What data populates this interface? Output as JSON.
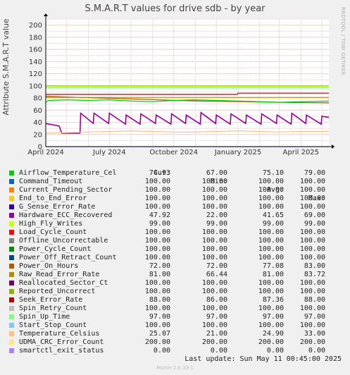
{
  "page": {
    "title": "S.M.A.R.T values for drive sdb - by year",
    "side_text": "RRDTOOL / TOBI OETIKER",
    "last_update_label": "Last update:",
    "last_update_value": "Sun May 11 00:45:00 2025",
    "footer": "Munin 2.0.33-1"
  },
  "legend_header": {
    "cur": "Cur:",
    "min": "Min:",
    "avg": "Avg:",
    "max": "Max:"
  },
  "legend": [
    {
      "name": "Airflow_Temperature_Cel",
      "color": "#00cc00",
      "cur": "74.93",
      "min": "67.00",
      "avg": "75.10",
      "max": "79.00"
    },
    {
      "name": "Command_Timeout",
      "color": "#0066b3",
      "cur": "100.00",
      "min": "100.00",
      "avg": "100.00",
      "max": "100.00"
    },
    {
      "name": "Current_Pending_Sector",
      "color": "#ff8000",
      "cur": "100.00",
      "min": "100.00",
      "avg": "100.00",
      "max": "100.00"
    },
    {
      "name": "End_to_End_Error",
      "color": "#ffcc00",
      "cur": "100.00",
      "min": "100.00",
      "avg": "100.00",
      "max": "100.00"
    },
    {
      "name": "G_Sense_Error_Rate",
      "color": "#330099",
      "cur": "100.00",
      "min": "100.00",
      "avg": "100.00",
      "max": "100.00"
    },
    {
      "name": "Hardware_ECC_Recovered",
      "color": "#990099",
      "cur": "47.92",
      "min": "22.00",
      "avg": "41.65",
      "max": "69.00"
    },
    {
      "name": "High_Fly_Writes",
      "color": "#ccff00",
      "cur": "99.00",
      "min": "99.00",
      "avg": "99.00",
      "max": "99.00"
    },
    {
      "name": "Load_Cycle_Count",
      "color": "#ff0000",
      "cur": "100.00",
      "min": "100.00",
      "avg": "100.00",
      "max": "100.00"
    },
    {
      "name": "Offline_Uncorrectable",
      "color": "#808080",
      "cur": "100.00",
      "min": "100.00",
      "avg": "100.00",
      "max": "100.00"
    },
    {
      "name": "Power_Cycle_Count",
      "color": "#008f00",
      "cur": "100.00",
      "min": "100.00",
      "avg": "100.00",
      "max": "100.00"
    },
    {
      "name": "Power_Off_Retract_Count",
      "color": "#00487d",
      "cur": "100.00",
      "min": "100.00",
      "avg": "100.00",
      "max": "100.00"
    },
    {
      "name": "Power_On_Hours",
      "color": "#b35a00",
      "cur": "72.00",
      "min": "72.00",
      "avg": "77.08",
      "max": "83.00"
    },
    {
      "name": "Raw_Read_Error_Rate",
      "color": "#b38f00",
      "cur": "81.00",
      "min": "66.44",
      "avg": "81.00",
      "max": "83.72"
    },
    {
      "name": "Reallocated_Sector_Ct",
      "color": "#6b006b",
      "cur": "100.00",
      "min": "100.00",
      "avg": "100.00",
      "max": "100.00"
    },
    {
      "name": "Reported_Uncorrect",
      "color": "#8fb300",
      "cur": "100.00",
      "min": "100.00",
      "avg": "100.00",
      "max": "100.00"
    },
    {
      "name": "Seek_Error_Rate",
      "color": "#b30000",
      "cur": "88.00",
      "min": "86.00",
      "avg": "87.36",
      "max": "88.00"
    },
    {
      "name": "Spin_Retry_Count",
      "color": "#bebebe",
      "cur": "100.00",
      "min": "100.00",
      "avg": "100.00",
      "max": "100.00"
    },
    {
      "name": "Spin_Up_Time",
      "color": "#80ff80",
      "cur": "97.00",
      "min": "97.00",
      "avg": "97.00",
      "max": "97.00"
    },
    {
      "name": "Start_Stop_Count",
      "color": "#80c9ff",
      "cur": "100.00",
      "min": "100.00",
      "avg": "100.00",
      "max": "100.00"
    },
    {
      "name": "Temperature_Celsius",
      "color": "#ffc080",
      "cur": "25.07",
      "min": "21.00",
      "avg": "24.90",
      "max": "33.00"
    },
    {
      "name": "UDMA_CRC_Error_Count",
      "color": "#ffe680",
      "cur": "200.00",
      "min": "200.00",
      "avg": "200.00",
      "max": "200.00"
    },
    {
      "name": "smartctl_exit_status",
      "color": "#aa80ff",
      "cur": "0.00",
      "min": "0.00",
      "avg": "0.00",
      "max": "0.00"
    }
  ],
  "chart_data": {
    "type": "line",
    "title": "S.M.A.R.T values for drive sdb - by year",
    "ylabel": "Attribute S.M.A.R.T value",
    "ylim": [
      0,
      210
    ],
    "yticks": [
      0,
      20,
      40,
      60,
      80,
      100,
      120,
      140,
      160,
      180,
      200
    ],
    "xlim": [
      "2024-04-01",
      "2025-05-11"
    ],
    "xticks": [
      {
        "date": "2024-04-01",
        "label": "April 2024"
      },
      {
        "date": "2024-07-01",
        "label": "July 2024"
      },
      {
        "date": "2024-10-01",
        "label": "October 2024"
      },
      {
        "date": "2025-01-01",
        "label": "January 2025"
      },
      {
        "date": "2025-04-01",
        "label": "April 2025"
      }
    ],
    "grid": true,
    "series": [
      {
        "name": "UDMA_CRC_Error_Count",
        "color": "#ffe680",
        "points": [
          [
            "2024-04-01",
            200
          ],
          [
            "2025-05-11",
            200
          ]
        ]
      },
      {
        "name": "Command_Timeout",
        "color": "#0066b3",
        "points": [
          [
            "2024-04-01",
            100
          ],
          [
            "2025-05-11",
            100
          ]
        ]
      },
      {
        "name": "Start_Stop_Count",
        "color": "#80c9ff",
        "points": [
          [
            "2024-04-01",
            100
          ],
          [
            "2025-05-11",
            100
          ]
        ]
      },
      {
        "name": "High_Fly_Writes",
        "color": "#ccff00",
        "points": [
          [
            "2024-04-01",
            99
          ],
          [
            "2025-05-11",
            99
          ]
        ]
      },
      {
        "name": "Spin_Up_Time",
        "color": "#80ff80",
        "points": [
          [
            "2024-04-01",
            97
          ],
          [
            "2025-05-11",
            97
          ]
        ]
      },
      {
        "name": "Seek_Error_Rate",
        "color": "#b30000",
        "points": [
          [
            "2024-04-01",
            86
          ],
          [
            "2024-12-31",
            86
          ],
          [
            "2025-01-01",
            88
          ],
          [
            "2025-05-11",
            88
          ]
        ]
      },
      {
        "name": "Power_On_Hours",
        "color": "#b35a00",
        "points": [
          [
            "2024-04-01",
            83
          ],
          [
            "2024-05-20",
            81
          ],
          [
            "2024-07-15",
            79
          ],
          [
            "2024-09-10",
            77
          ],
          [
            "2024-11-05",
            75
          ],
          [
            "2025-01-05",
            74
          ],
          [
            "2025-03-01",
            73
          ],
          [
            "2025-05-11",
            72
          ]
        ]
      },
      {
        "name": "Raw_Read_Error_Rate",
        "color": "#b38f00",
        "points": [
          [
            "2024-04-01",
            81
          ],
          [
            "2025-05-11",
            81
          ]
        ]
      },
      {
        "name": "Airflow_Temperature_Cel",
        "color": "#00cc00",
        "points": [
          [
            "2024-04-01",
            73
          ],
          [
            "2024-04-05",
            76
          ],
          [
            "2024-05-01",
            77
          ],
          [
            "2024-06-01",
            76
          ],
          [
            "2024-07-01",
            77
          ],
          [
            "2024-08-01",
            75
          ],
          [
            "2024-09-01",
            74
          ],
          [
            "2024-10-01",
            76
          ],
          [
            "2024-11-01",
            77
          ],
          [
            "2024-12-01",
            76
          ],
          [
            "2025-01-01",
            75
          ],
          [
            "2025-02-01",
            74
          ],
          [
            "2025-03-01",
            73
          ],
          [
            "2025-04-01",
            74
          ],
          [
            "2025-05-11",
            75
          ]
        ]
      },
      {
        "name": "Hardware_ECC_Recovered",
        "color": "#990099",
        "points": [
          [
            "2024-04-01",
            38
          ],
          [
            "2024-04-20",
            34
          ],
          [
            "2024-04-24",
            22
          ],
          [
            "2024-05-20",
            22
          ],
          [
            "2024-05-21",
            55
          ],
          [
            "2024-06-08",
            38
          ],
          [
            "2024-06-09",
            55
          ],
          [
            "2024-06-30",
            38
          ],
          [
            "2024-07-01",
            55
          ],
          [
            "2024-07-24",
            37
          ],
          [
            "2024-07-25",
            52
          ],
          [
            "2024-08-14",
            37
          ],
          [
            "2024-08-15",
            54
          ],
          [
            "2024-09-05",
            38
          ],
          [
            "2024-09-06",
            52
          ],
          [
            "2024-09-27",
            37
          ],
          [
            "2024-09-28",
            54
          ],
          [
            "2024-10-18",
            38
          ],
          [
            "2024-10-19",
            52
          ],
          [
            "2024-11-08",
            37
          ],
          [
            "2024-11-09",
            56
          ],
          [
            "2024-11-30",
            38
          ],
          [
            "2024-12-01",
            52
          ],
          [
            "2024-12-21",
            37
          ],
          [
            "2024-12-22",
            54
          ],
          [
            "2025-01-12",
            38
          ],
          [
            "2025-01-13",
            52
          ],
          [
            "2025-02-03",
            37
          ],
          [
            "2025-02-04",
            54
          ],
          [
            "2025-02-25",
            38
          ],
          [
            "2025-02-26",
            52
          ],
          [
            "2025-03-18",
            37
          ],
          [
            "2025-03-19",
            55
          ],
          [
            "2025-04-08",
            38
          ],
          [
            "2025-04-09",
            52
          ],
          [
            "2025-04-30",
            37
          ],
          [
            "2025-05-01",
            50
          ],
          [
            "2025-05-11",
            48
          ]
        ]
      },
      {
        "name": "Temperature_Celsius",
        "color": "#ffc080",
        "points": [
          [
            "2024-04-01",
            22
          ],
          [
            "2024-05-01",
            23
          ],
          [
            "2024-06-01",
            24
          ],
          [
            "2024-07-01",
            25
          ],
          [
            "2024-08-01",
            26
          ],
          [
            "2024-09-01",
            25
          ],
          [
            "2024-10-01",
            24
          ],
          [
            "2024-11-01",
            24
          ],
          [
            "2024-12-01",
            25
          ],
          [
            "2025-01-01",
            26
          ],
          [
            "2025-02-01",
            25
          ],
          [
            "2025-03-01",
            24
          ],
          [
            "2025-04-01",
            25
          ],
          [
            "2025-05-11",
            25
          ]
        ]
      },
      {
        "name": "smartctl_exit_status",
        "color": "#aa80ff",
        "points": [
          [
            "2024-04-01",
            0
          ],
          [
            "2025-05-11",
            0
          ]
        ]
      }
    ]
  }
}
